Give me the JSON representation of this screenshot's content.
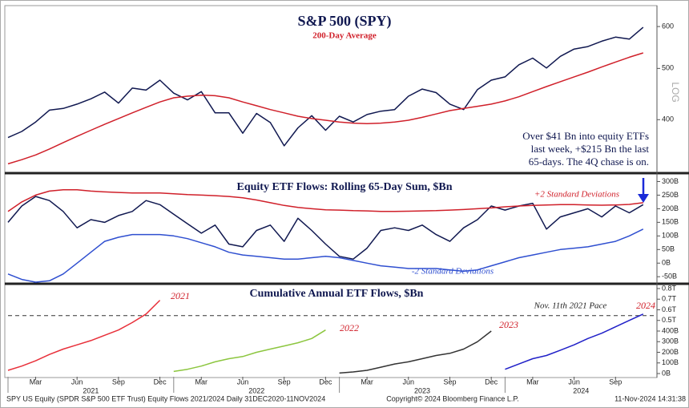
{
  "chart_data": [
    {
      "type": "line",
      "title": "S&P 500 (SPY)",
      "subtitle": "200-Day Average",
      "log_scale": true,
      "ylim": [
        318,
        655
      ],
      "yticks": [
        400,
        500,
        600
      ],
      "y_axis_label": "LOG",
      "xlim": [
        "2021-01",
        "2024-12"
      ],
      "x": [
        "2021-01",
        "2021-02",
        "2021-03",
        "2021-04",
        "2021-05",
        "2021-06",
        "2021-07",
        "2021-08",
        "2021-09",
        "2021-10",
        "2021-11",
        "2021-12",
        "2022-01",
        "2022-02",
        "2022-03",
        "2022-04",
        "2022-05",
        "2022-06",
        "2022-07",
        "2022-08",
        "2022-09",
        "2022-10",
        "2022-11",
        "2022-12",
        "2023-01",
        "2023-02",
        "2023-03",
        "2023-04",
        "2023-05",
        "2023-06",
        "2023-07",
        "2023-08",
        "2023-09",
        "2023-10",
        "2023-11",
        "2023-12",
        "2024-01",
        "2024-02",
        "2024-03",
        "2024-04",
        "2024-05",
        "2024-06",
        "2024-07",
        "2024-08",
        "2024-09",
        "2024-10",
        "2024-11"
      ],
      "series": [
        {
          "color": "#101850",
          "values": [
            370,
            380,
            396,
            417,
            420,
            428,
            438,
            451,
            430,
            459,
            455,
            475,
            449,
            436,
            452,
            412,
            412,
            377,
            411,
            395,
            357,
            386,
            407,
            382,
            406,
            396,
            409,
            415,
            418,
            443,
            457,
            450,
            428,
            418,
            456,
            475,
            482,
            508,
            523,
            501,
            527,
            544,
            550,
            563,
            573,
            568,
            598
          ]
        },
        {
          "color": "#d0202a",
          "values": [
            330,
            336,
            343,
            352,
            362,
            372,
            382,
            392,
            402,
            412,
            422,
            432,
            440,
            443,
            445,
            444,
            440,
            432,
            425,
            418,
            412,
            406,
            402,
            399,
            396,
            394,
            393,
            394,
            396,
            399,
            404,
            410,
            416,
            420,
            424,
            428,
            434,
            442,
            452,
            462,
            472,
            482,
            492,
            503,
            514,
            525,
            535
          ]
        }
      ],
      "annotation": [
        "Over $41 Bn into equity ETFs",
        "last week, +$215 Bn the last",
        "65-days. The 4Q chase is on."
      ]
    },
    {
      "type": "line",
      "title": "Equity ETF Flows: Rolling 65-Day Sum, $Bn",
      "ylim": [
        -70,
        325
      ],
      "yticks": [
        {
          "value": -50,
          "label": "-50B"
        },
        {
          "value": 0,
          "label": "0B"
        },
        {
          "value": 50,
          "label": "50B"
        },
        {
          "value": 100,
          "label": "100B"
        },
        {
          "value": 150,
          "label": "150B"
        },
        {
          "value": 200,
          "label": "200B"
        },
        {
          "value": 250,
          "label": "250B"
        },
        {
          "value": 300,
          "label": "300B"
        }
      ],
      "xlim": [
        "2021-01",
        "2024-12"
      ],
      "x": [
        "2021-01",
        "2021-02",
        "2021-03",
        "2021-04",
        "2021-05",
        "2021-06",
        "2021-07",
        "2021-08",
        "2021-09",
        "2021-10",
        "2021-11",
        "2021-12",
        "2022-01",
        "2022-02",
        "2022-03",
        "2022-04",
        "2022-05",
        "2022-06",
        "2022-07",
        "2022-08",
        "2022-09",
        "2022-10",
        "2022-11",
        "2022-12",
        "2023-01",
        "2023-02",
        "2023-03",
        "2023-04",
        "2023-05",
        "2023-06",
        "2023-07",
        "2023-08",
        "2023-09",
        "2023-10",
        "2023-11",
        "2023-12",
        "2024-01",
        "2024-02",
        "2024-03",
        "2024-04",
        "2024-05",
        "2024-06",
        "2024-07",
        "2024-08",
        "2024-09",
        "2024-10",
        "2024-11"
      ],
      "series": [
        {
          "color": "#101850",
          "values": [
            150,
            210,
            245,
            230,
            190,
            130,
            160,
            150,
            175,
            190,
            230,
            215,
            180,
            145,
            110,
            140,
            70,
            60,
            120,
            140,
            80,
            165,
            120,
            70,
            25,
            15,
            55,
            120,
            130,
            120,
            140,
            105,
            80,
            130,
            160,
            210,
            195,
            210,
            220,
            125,
            170,
            185,
            200,
            170,
            210,
            185,
            215
          ]
        },
        {
          "name": "+2 Standard Deviations",
          "color": "#d0202a",
          "values": [
            190,
            225,
            250,
            265,
            270,
            270,
            265,
            262,
            260,
            258,
            258,
            258,
            255,
            252,
            250,
            248,
            245,
            240,
            232,
            222,
            212,
            205,
            200,
            196,
            195,
            193,
            192,
            190,
            190,
            191,
            192,
            193,
            195,
            197,
            200,
            203,
            207,
            210,
            212,
            214,
            215,
            215,
            214,
            213,
            214,
            216,
            222
          ]
        },
        {
          "name": "-2 Standard Deviations",
          "color": "#2f4fd0",
          "values": [
            -40,
            -60,
            -70,
            -65,
            -40,
            0,
            40,
            80,
            95,
            105,
            105,
            105,
            100,
            90,
            75,
            60,
            40,
            30,
            25,
            20,
            15,
            15,
            20,
            25,
            20,
            10,
            0,
            -10,
            -15,
            -20,
            -20,
            -20,
            -25,
            -30,
            -25,
            -10,
            5,
            20,
            30,
            40,
            50,
            55,
            60,
            70,
            80,
            100,
            125
          ]
        }
      ]
    },
    {
      "type": "line",
      "title": "Cumulative Annual ETF Flows, $Bn",
      "ylim": [
        -30,
        830
      ],
      "yticks": [
        {
          "value": 0,
          "label": "0B"
        },
        {
          "value": 100,
          "label": "100B"
        },
        {
          "value": 200,
          "label": "200B"
        },
        {
          "value": 300,
          "label": "300B"
        },
        {
          "value": 400,
          "label": "400B"
        },
        {
          "value": 500,
          "label": "0.5T"
        },
        {
          "value": 600,
          "label": "0.6T"
        },
        {
          "value": 700,
          "label": "0.7T"
        },
        {
          "value": 800,
          "label": "0.8T"
        }
      ],
      "reference_line": {
        "value": 545,
        "label": "Nov. 11th 2021 Pace"
      },
      "xlim": [
        "2021-01",
        "2024-12"
      ],
      "xticks": [
        {
          "value": "2021-03",
          "label": "Mar"
        },
        {
          "value": "2021-06",
          "label": "Jun"
        },
        {
          "value": "2021-09",
          "label": "Sep"
        },
        {
          "value": "2021-12",
          "label": "Dec"
        },
        {
          "value": "2022-03",
          "label": "Mar"
        },
        {
          "value": "2022-06",
          "label": "Jun"
        },
        {
          "value": "2022-09",
          "label": "Sep"
        },
        {
          "value": "2022-12",
          "label": "Dec"
        },
        {
          "value": "2023-03",
          "label": "Mar"
        },
        {
          "value": "2023-06",
          "label": "Jun"
        },
        {
          "value": "2023-09",
          "label": "Sep"
        },
        {
          "value": "2023-12",
          "label": "Dec"
        },
        {
          "value": "2024-03",
          "label": "Mar"
        },
        {
          "value": "2024-06",
          "label": "Jun"
        },
        {
          "value": "2024-09",
          "label": "Sep"
        }
      ],
      "years": [
        "2021",
        "2022",
        "2023",
        "2024"
      ],
      "series": [
        {
          "name": "2021",
          "color": "#e8303a",
          "x": [
            "2021-01",
            "2021-02",
            "2021-03",
            "2021-04",
            "2021-05",
            "2021-06",
            "2021-07",
            "2021-08",
            "2021-09",
            "2021-10",
            "2021-11",
            "2021-12"
          ],
          "values": [
            30,
            70,
            120,
            180,
            230,
            270,
            310,
            360,
            410,
            480,
            560,
            690
          ]
        },
        {
          "name": "2022",
          "color": "#8cc63f",
          "x": [
            "2022-01",
            "2022-02",
            "2022-03",
            "2022-04",
            "2022-05",
            "2022-06",
            "2022-07",
            "2022-08",
            "2022-09",
            "2022-10",
            "2022-11",
            "2022-12"
          ],
          "values": [
            20,
            40,
            70,
            110,
            140,
            160,
            200,
            230,
            260,
            290,
            330,
            410
          ]
        },
        {
          "name": "2023",
          "color": "#333333",
          "x": [
            "2023-01",
            "2023-02",
            "2023-03",
            "2023-04",
            "2023-05",
            "2023-06",
            "2023-07",
            "2023-08",
            "2023-09",
            "2023-10",
            "2023-11",
            "2023-12"
          ],
          "values": [
            5,
            15,
            30,
            60,
            90,
            110,
            140,
            170,
            190,
            230,
            300,
            400
          ]
        },
        {
          "name": "2024",
          "color": "#2020c8",
          "x": [
            "2024-01",
            "2024-02",
            "2024-03",
            "2024-04",
            "2024-05",
            "2024-06",
            "2024-07",
            "2024-08",
            "2024-09",
            "2024-10",
            "2024-11"
          ],
          "values": [
            40,
            90,
            140,
            170,
            220,
            270,
            330,
            380,
            440,
            500,
            560
          ]
        }
      ]
    }
  ],
  "footer": {
    "left": "SPY US Equity (SPDR S&P 500 ETF Trust) Equity Flows 2021/2024  Daily 31DEC2020-11NOV2024",
    "center": "Copyright© 2024 Bloomberg Finance L.P.",
    "right": "11-Nov-2024 14:31:38"
  }
}
